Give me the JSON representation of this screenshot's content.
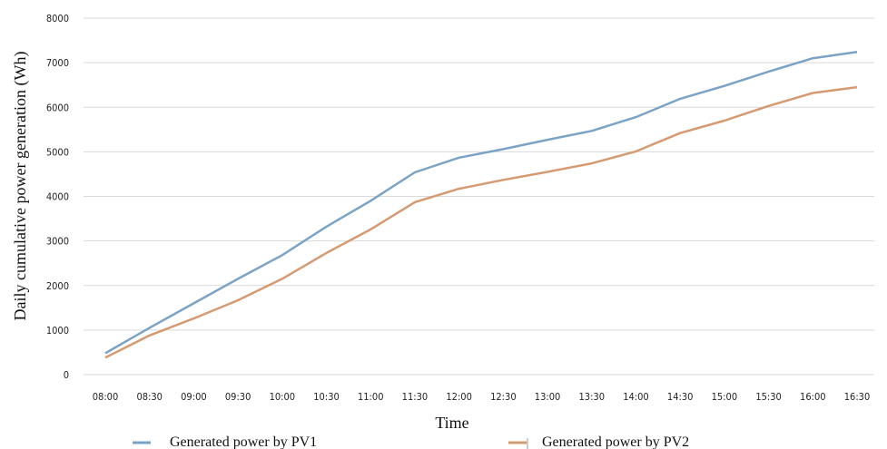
{
  "chart_data": {
    "type": "line",
    "xlabel": "Time",
    "ylabel": "Daily cumulative power generation (Wh)",
    "categories": [
      "08:00",
      "08:30",
      "09:00",
      "09:30",
      "10:00",
      "10:30",
      "11:00",
      "11:30",
      "12:00",
      "12:30",
      "13:00",
      "13:30",
      "14:00",
      "14:30",
      "15:00",
      "15:30",
      "16:00",
      "16:30"
    ],
    "ylim": [
      0,
      8000
    ],
    "yticks": [
      "0",
      "1000",
      "2000",
      "3000",
      "4000",
      "5000",
      "6000",
      "7000",
      "8000"
    ],
    "grid": true,
    "legend_position": "bottom",
    "series": [
      {
        "name": "Generated power by PV1",
        "color": "#7ba3c6",
        "values": [
          480,
          1050,
          1600,
          2150,
          2680,
          3320,
          3900,
          4540,
          4870,
          5060,
          5270,
          5470,
          5780,
          6190,
          6480,
          6800,
          7100,
          7240
        ]
      },
      {
        "name": "Generated power by PV2",
        "color": "#d69a72",
        "values": [
          380,
          880,
          1260,
          1670,
          2150,
          2730,
          3260,
          3870,
          4170,
          4370,
          4550,
          4740,
          5010,
          5420,
          5700,
          6030,
          6320,
          6450
        ]
      }
    ]
  }
}
